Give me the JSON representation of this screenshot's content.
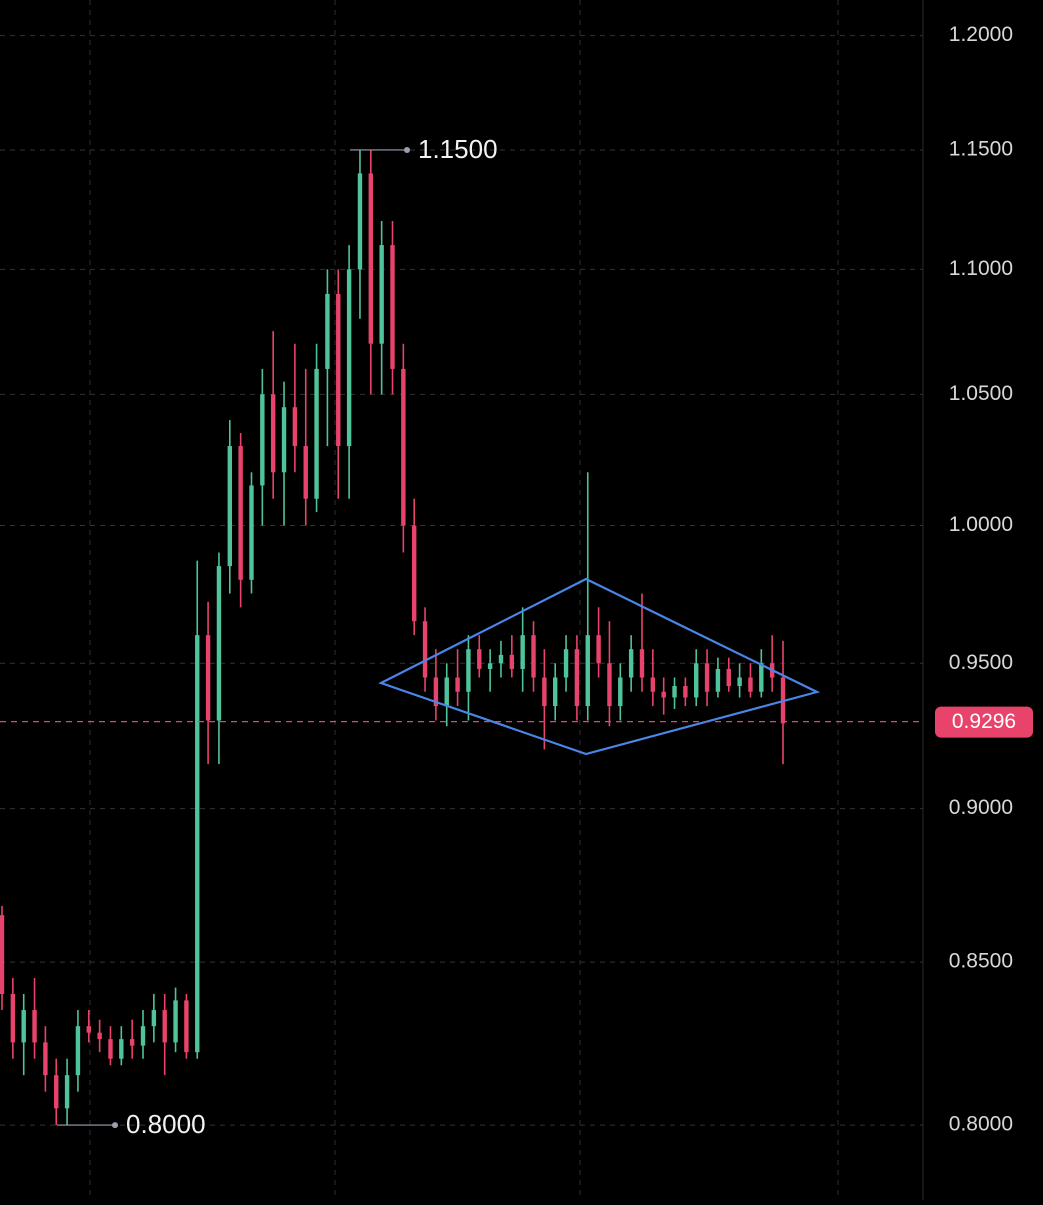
{
  "chart_data": {
    "type": "candlestick",
    "log_scale": true,
    "grid": true,
    "up_color": "#4fc49a",
    "down_color": "#e8436b",
    "ylim": [
      0.778,
      1.216
    ],
    "yticks": [
      {
        "value": 0.8,
        "label": "0.8000"
      },
      {
        "value": 0.85,
        "label": "0.8500"
      },
      {
        "value": 0.9,
        "label": "0.9000"
      },
      {
        "value": 0.95,
        "label": "0.9500"
      },
      {
        "value": 1.0,
        "label": "1.0000"
      },
      {
        "value": 1.05,
        "label": "1.0500"
      },
      {
        "value": 1.1,
        "label": "1.1000"
      },
      {
        "value": 1.15,
        "label": "1.1500"
      },
      {
        "value": 1.2,
        "label": "1.2000"
      }
    ],
    "last_price": 0.9296,
    "high_label": {
      "value": 1.15,
      "label": "1.1500"
    },
    "low_label": {
      "value": 0.8,
      "label": "0.8000"
    },
    "open": [
      0.865,
      0.84,
      0.825,
      0.835,
      0.825,
      0.815,
      0.805,
      0.815,
      0.83,
      0.828,
      0.826,
      0.82,
      0.826,
      0.824,
      0.83,
      0.835,
      0.825,
      0.838,
      0.822,
      0.96,
      0.93,
      0.985,
      1.03,
      0.98,
      1.015,
      1.05,
      1.02,
      1.045,
      1.03,
      1.01,
      1.06,
      1.09,
      1.03,
      1.1,
      1.14,
      1.07,
      1.11,
      1.06,
      1.0,
      0.965,
      0.945,
      0.935,
      0.945,
      0.94,
      0.955,
      0.948,
      0.95,
      0.953,
      0.948,
      0.96,
      0.945,
      0.935,
      0.945,
      0.955,
      0.935,
      0.96,
      0.95,
      0.935,
      0.945,
      0.955,
      0.945,
      0.94,
      0.938,
      0.942,
      0.938,
      0.95,
      0.94,
      0.948,
      0.942,
      0.945,
      0.94,
      0.95,
      0.945
    ],
    "high": [
      0.868,
      0.845,
      0.84,
      0.845,
      0.83,
      0.82,
      0.82,
      0.835,
      0.835,
      0.832,
      0.83,
      0.83,
      0.832,
      0.835,
      0.84,
      0.84,
      0.842,
      0.84,
      0.987,
      0.972,
      0.99,
      1.04,
      1.035,
      1.02,
      1.06,
      1.075,
      1.055,
      1.07,
      1.06,
      1.07,
      1.1,
      1.1,
      1.11,
      1.15,
      1.15,
      1.12,
      1.12,
      1.07,
      1.01,
      0.97,
      0.955,
      0.95,
      0.955,
      0.96,
      0.96,
      0.955,
      0.958,
      0.96,
      0.97,
      0.965,
      0.955,
      0.95,
      0.96,
      0.96,
      1.02,
      0.97,
      0.965,
      0.95,
      0.96,
      0.975,
      0.955,
      0.945,
      0.945,
      0.945,
      0.955,
      0.955,
      0.952,
      0.952,
      0.95,
      0.95,
      0.955,
      0.96,
      0.958
    ],
    "low": [
      0.835,
      0.82,
      0.815,
      0.82,
      0.81,
      0.8,
      0.8,
      0.81,
      0.825,
      0.822,
      0.818,
      0.818,
      0.82,
      0.82,
      0.825,
      0.815,
      0.822,
      0.82,
      0.82,
      0.915,
      0.915,
      0.975,
      0.97,
      0.975,
      1.0,
      1.01,
      1.0,
      1.02,
      1.0,
      1.005,
      1.03,
      1.01,
      1.01,
      1.08,
      1.05,
      1.05,
      1.05,
      0.99,
      0.96,
      0.94,
      0.93,
      0.928,
      0.935,
      0.93,
      0.945,
      0.94,
      0.945,
      0.945,
      0.94,
      0.94,
      0.92,
      0.93,
      0.94,
      0.93,
      0.93,
      0.945,
      0.928,
      0.93,
      0.94,
      0.94,
      0.935,
      0.932,
      0.934,
      0.935,
      0.935,
      0.935,
      0.938,
      0.94,
      0.938,
      0.938,
      0.938,
      0.94,
      0.915
    ],
    "close": [
      0.84,
      0.825,
      0.835,
      0.825,
      0.815,
      0.805,
      0.815,
      0.83,
      0.828,
      0.826,
      0.82,
      0.826,
      0.824,
      0.83,
      0.835,
      0.825,
      0.838,
      0.822,
      0.96,
      0.93,
      0.985,
      1.03,
      0.98,
      1.015,
      1.05,
      1.02,
      1.045,
      1.03,
      1.01,
      1.06,
      1.09,
      1.03,
      1.1,
      1.14,
      1.07,
      1.11,
      1.06,
      1.0,
      0.965,
      0.945,
      0.935,
      0.945,
      0.94,
      0.955,
      0.948,
      0.95,
      0.953,
      0.948,
      0.96,
      0.945,
      0.935,
      0.945,
      0.955,
      0.935,
      0.96,
      0.95,
      0.935,
      0.945,
      0.955,
      0.945,
      0.94,
      0.938,
      0.942,
      0.938,
      0.95,
      0.94,
      0.948,
      0.942,
      0.945,
      0.94,
      0.95,
      0.945,
      0.929
    ]
  }
}
